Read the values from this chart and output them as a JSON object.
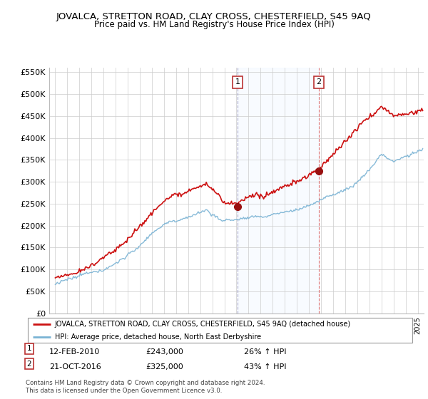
{
  "title": "JOVALCA, STRETTON ROAD, CLAY CROSS, CHESTERFIELD, S45 9AQ",
  "subtitle": "Price paid vs. HM Land Registry's House Price Index (HPI)",
  "legend_line1": "JOVALCA, STRETTON ROAD, CLAY CROSS, CHESTERFIELD, S45 9AQ (detached house)",
  "legend_line2": "HPI: Average price, detached house, North East Derbyshire",
  "footer": "Contains HM Land Registry data © Crown copyright and database right 2024.\nThis data is licensed under the Open Government Licence v3.0.",
  "sale1_date": "12-FEB-2010",
  "sale1_price": "£243,000",
  "sale1_hpi": "26% ↑ HPI",
  "sale2_date": "21-OCT-2016",
  "sale2_price": "£325,000",
  "sale2_hpi": "43% ↑ HPI",
  "hpi_color": "#7ab3d4",
  "price_color": "#cc1111",
  "vline1_color": "#bbbbcc",
  "vline2_color": "#dd8888",
  "shade_color": "#ddeeff",
  "grid_color": "#cccccc",
  "ylim": [
    0,
    560000
  ],
  "yticks": [
    0,
    50000,
    100000,
    150000,
    200000,
    250000,
    300000,
    350000,
    400000,
    450000,
    500000,
    550000
  ],
  "sale1_x": 2010.1,
  "sale2_x": 2016.8,
  "sale1_y": 243000,
  "sale2_y": 325000,
  "xmin": 1994.5,
  "xmax": 2025.5
}
